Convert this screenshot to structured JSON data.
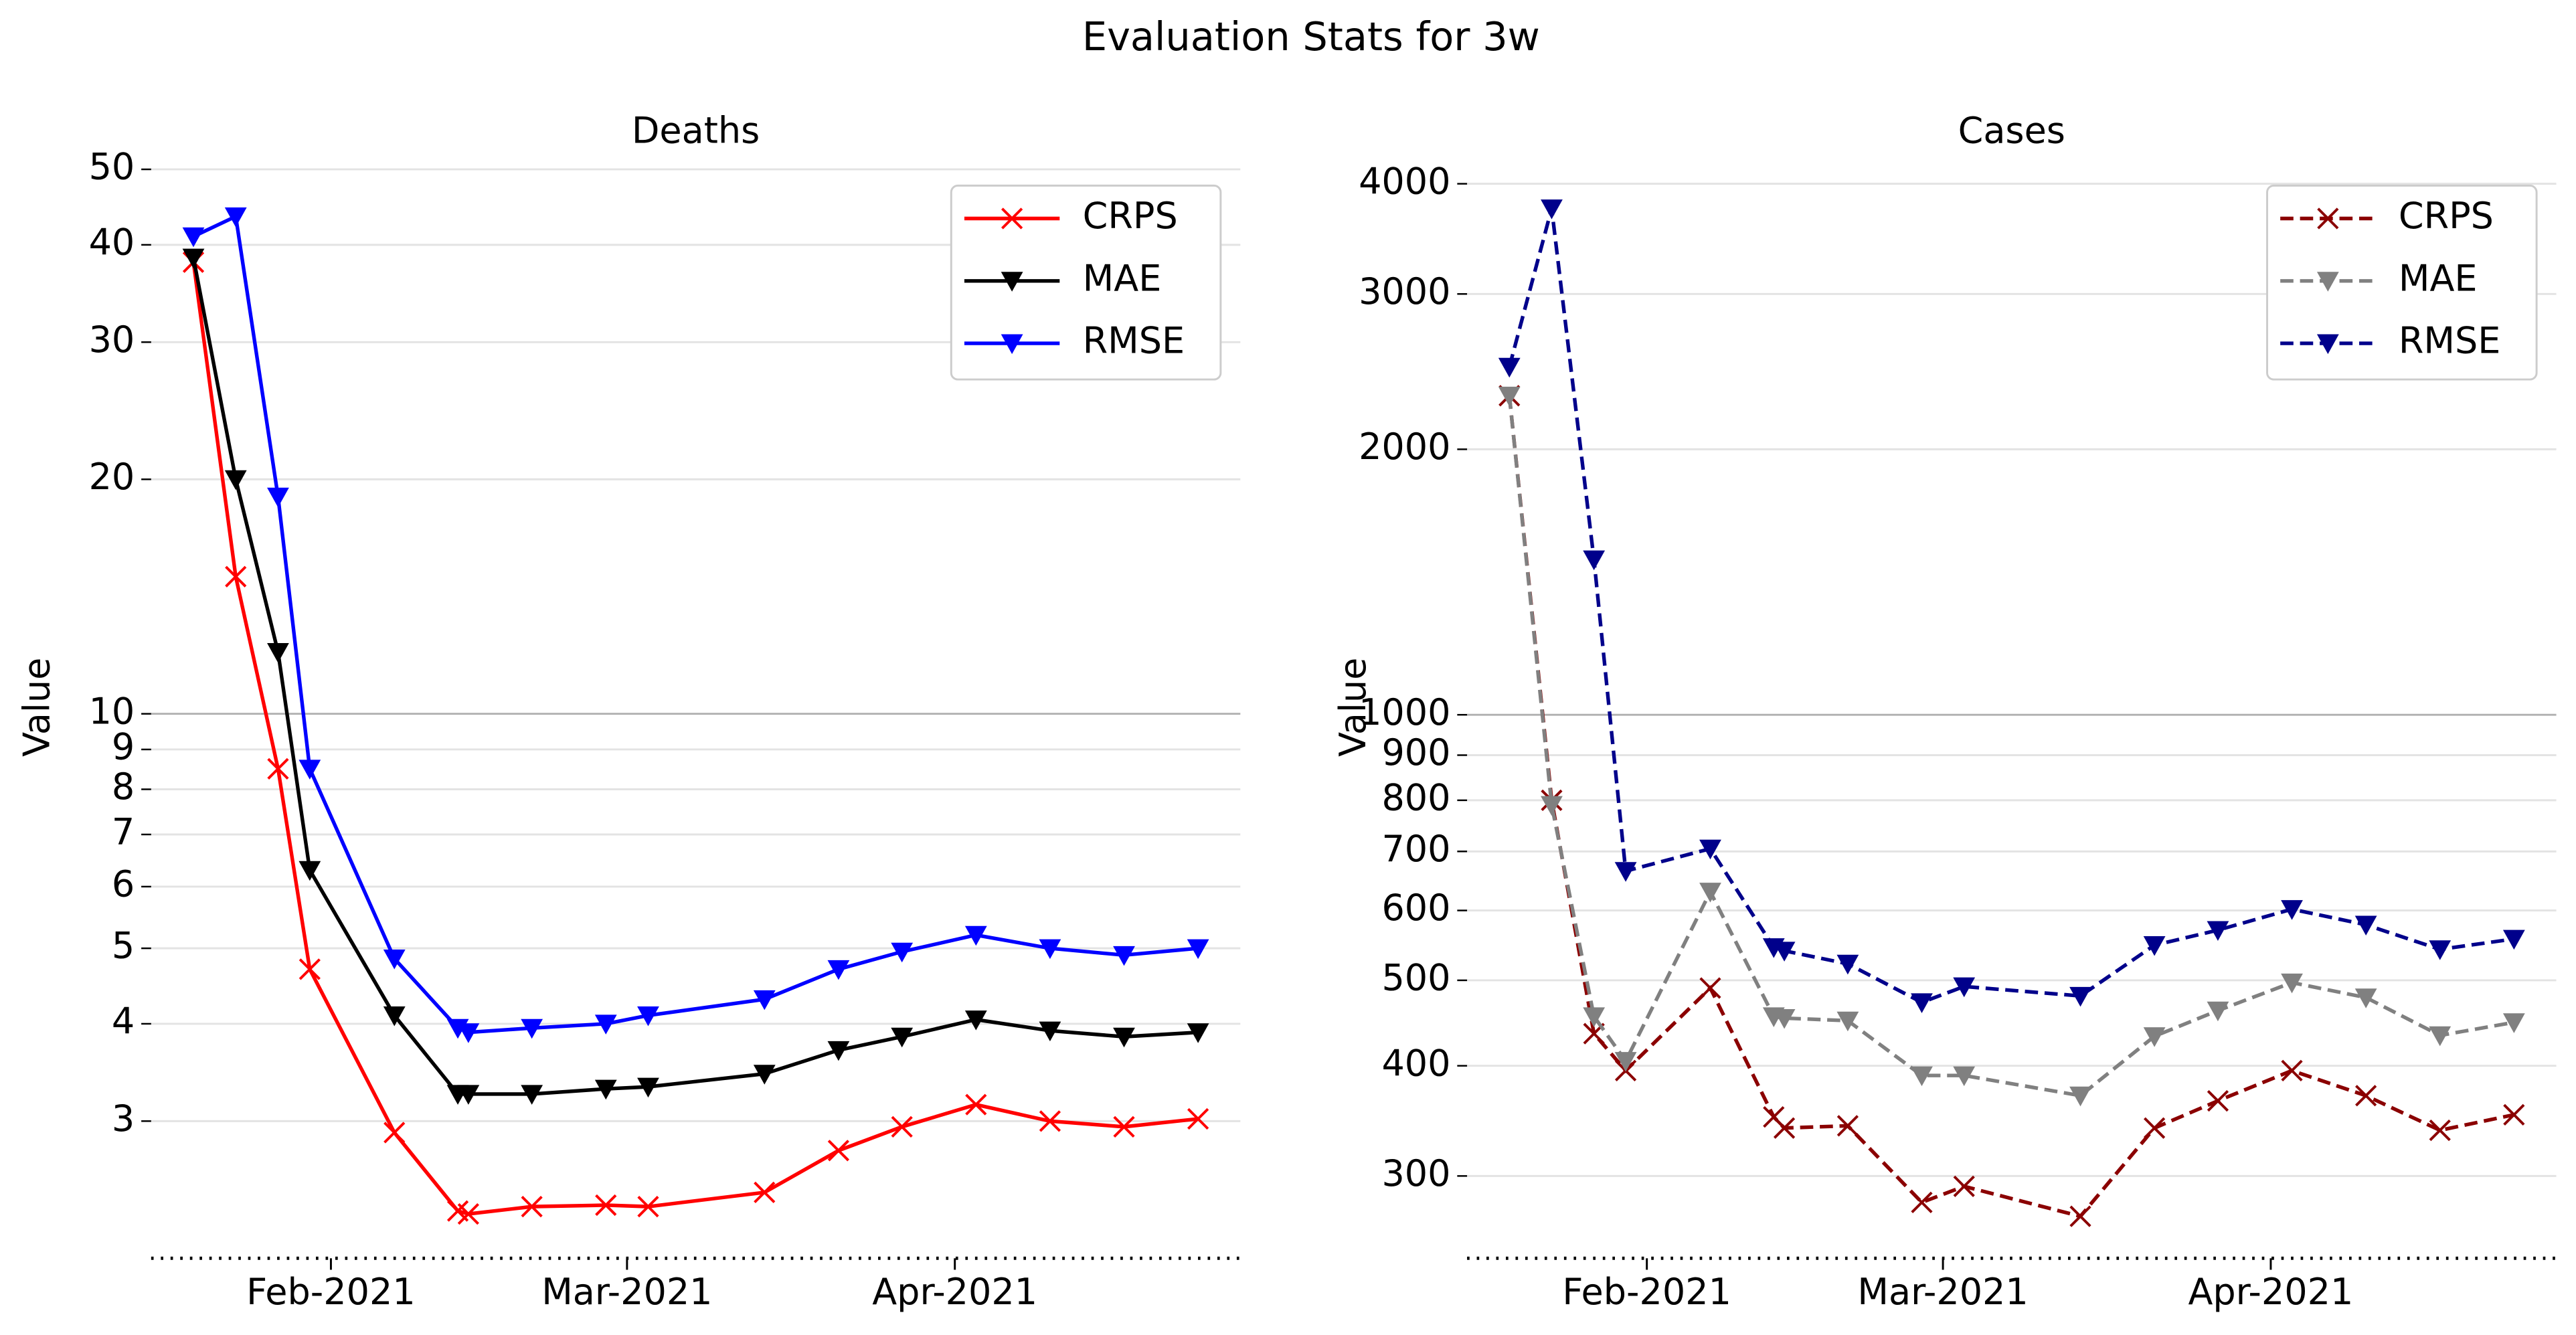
{
  "title": "Evaluation Stats for 3w",
  "chart_data": [
    {
      "type": "line",
      "title": "Deaths",
      "ylabel": "Value",
      "log_y": true,
      "grid": true,
      "legend": "upper right",
      "x": [
        "2021-01-19",
        "2021-01-23",
        "2021-01-27",
        "2021-01-30",
        "2021-02-07",
        "2021-02-13",
        "2021-02-14",
        "2021-02-20",
        "2021-02-27",
        "2021-03-03",
        "2021-03-14",
        "2021-03-21",
        "2021-03-27",
        "2021-04-03",
        "2021-04-10",
        "2021-04-17",
        "2021-04-24"
      ],
      "xlim": [
        "2021-01-15",
        "2021-04-28"
      ],
      "xticks": [
        {
          "value": "2021-02-01",
          "label": "Feb-2021"
        },
        {
          "value": "2021-03-01",
          "label": "Mar-2021"
        },
        {
          "value": "2021-04-01",
          "label": "Apr-2021"
        }
      ],
      "ylim": [
        2.0,
        52
      ],
      "yticks": [
        3,
        4,
        5,
        6,
        7,
        8,
        9,
        10,
        20,
        30,
        40,
        50
      ],
      "series": [
        {
          "name": "CRPS",
          "color": "#ff0000",
          "marker": "x",
          "linestyle": "solid",
          "values": [
            38,
            15,
            8.5,
            4.7,
            2.9,
            2.3,
            2.28,
            2.33,
            2.34,
            2.33,
            2.43,
            2.75,
            2.95,
            3.15,
            3.0,
            2.95,
            3.02
          ]
        },
        {
          "name": "MAE",
          "color": "#000000",
          "marker": "triangle-down",
          "linestyle": "solid",
          "values": [
            38.5,
            20,
            12,
            6.3,
            4.1,
            3.25,
            3.25,
            3.25,
            3.3,
            3.32,
            3.45,
            3.7,
            3.85,
            4.05,
            3.92,
            3.85,
            3.9
          ]
        },
        {
          "name": "RMSE",
          "color": "#0000ff",
          "marker": "triangle-down",
          "linestyle": "solid",
          "values": [
            41,
            43.5,
            19,
            8.5,
            4.85,
            3.95,
            3.9,
            3.95,
            4.0,
            4.1,
            4.3,
            4.7,
            4.95,
            5.2,
            5.0,
            4.9,
            5.0
          ]
        }
      ]
    },
    {
      "type": "line",
      "title": "Cases",
      "ylabel": "Value",
      "log_y": true,
      "grid": true,
      "legend": "upper right",
      "x": [
        "2021-01-19",
        "2021-01-23",
        "2021-01-27",
        "2021-01-30",
        "2021-02-07",
        "2021-02-13",
        "2021-02-14",
        "2021-02-20",
        "2021-02-27",
        "2021-03-03",
        "2021-03-14",
        "2021-03-21",
        "2021-03-27",
        "2021-04-03",
        "2021-04-10",
        "2021-04-17",
        "2021-04-24"
      ],
      "xlim": [
        "2021-01-15",
        "2021-04-28"
      ],
      "xticks": [
        {
          "value": "2021-02-01",
          "label": "Feb-2021"
        },
        {
          "value": "2021-03-01",
          "label": "Mar-2021"
        },
        {
          "value": "2021-04-01",
          "label": "Apr-2021"
        }
      ],
      "ylim": [
        242,
        4300
      ],
      "yticks": [
        300,
        400,
        500,
        600,
        700,
        800,
        900,
        1000,
        2000,
        3000,
        4000
      ],
      "series": [
        {
          "name": "CRPS",
          "color": "#8b0000",
          "marker": "x",
          "linestyle": "dashed",
          "values": [
            2300,
            800,
            435,
            395,
            490,
            350,
            340,
            342,
            280,
            292,
            270,
            340,
            365,
            395,
            370,
            338,
            352
          ]
        },
        {
          "name": "MAE",
          "color": "#808080",
          "marker": "triangle-down",
          "linestyle": "dashed",
          "values": [
            2300,
            790,
            455,
            405,
            630,
            455,
            453,
            450,
            390,
            390,
            370,
            432,
            462,
            497,
            478,
            433,
            448
          ]
        },
        {
          "name": "RMSE",
          "color": "#00008b",
          "marker": "triangle-down",
          "linestyle": "dashed",
          "values": [
            2480,
            3750,
            1500,
            665,
            705,
            545,
            540,
            522,
            472,
            492,
            480,
            548,
            570,
            602,
            578,
            542,
            557
          ]
        }
      ]
    }
  ]
}
